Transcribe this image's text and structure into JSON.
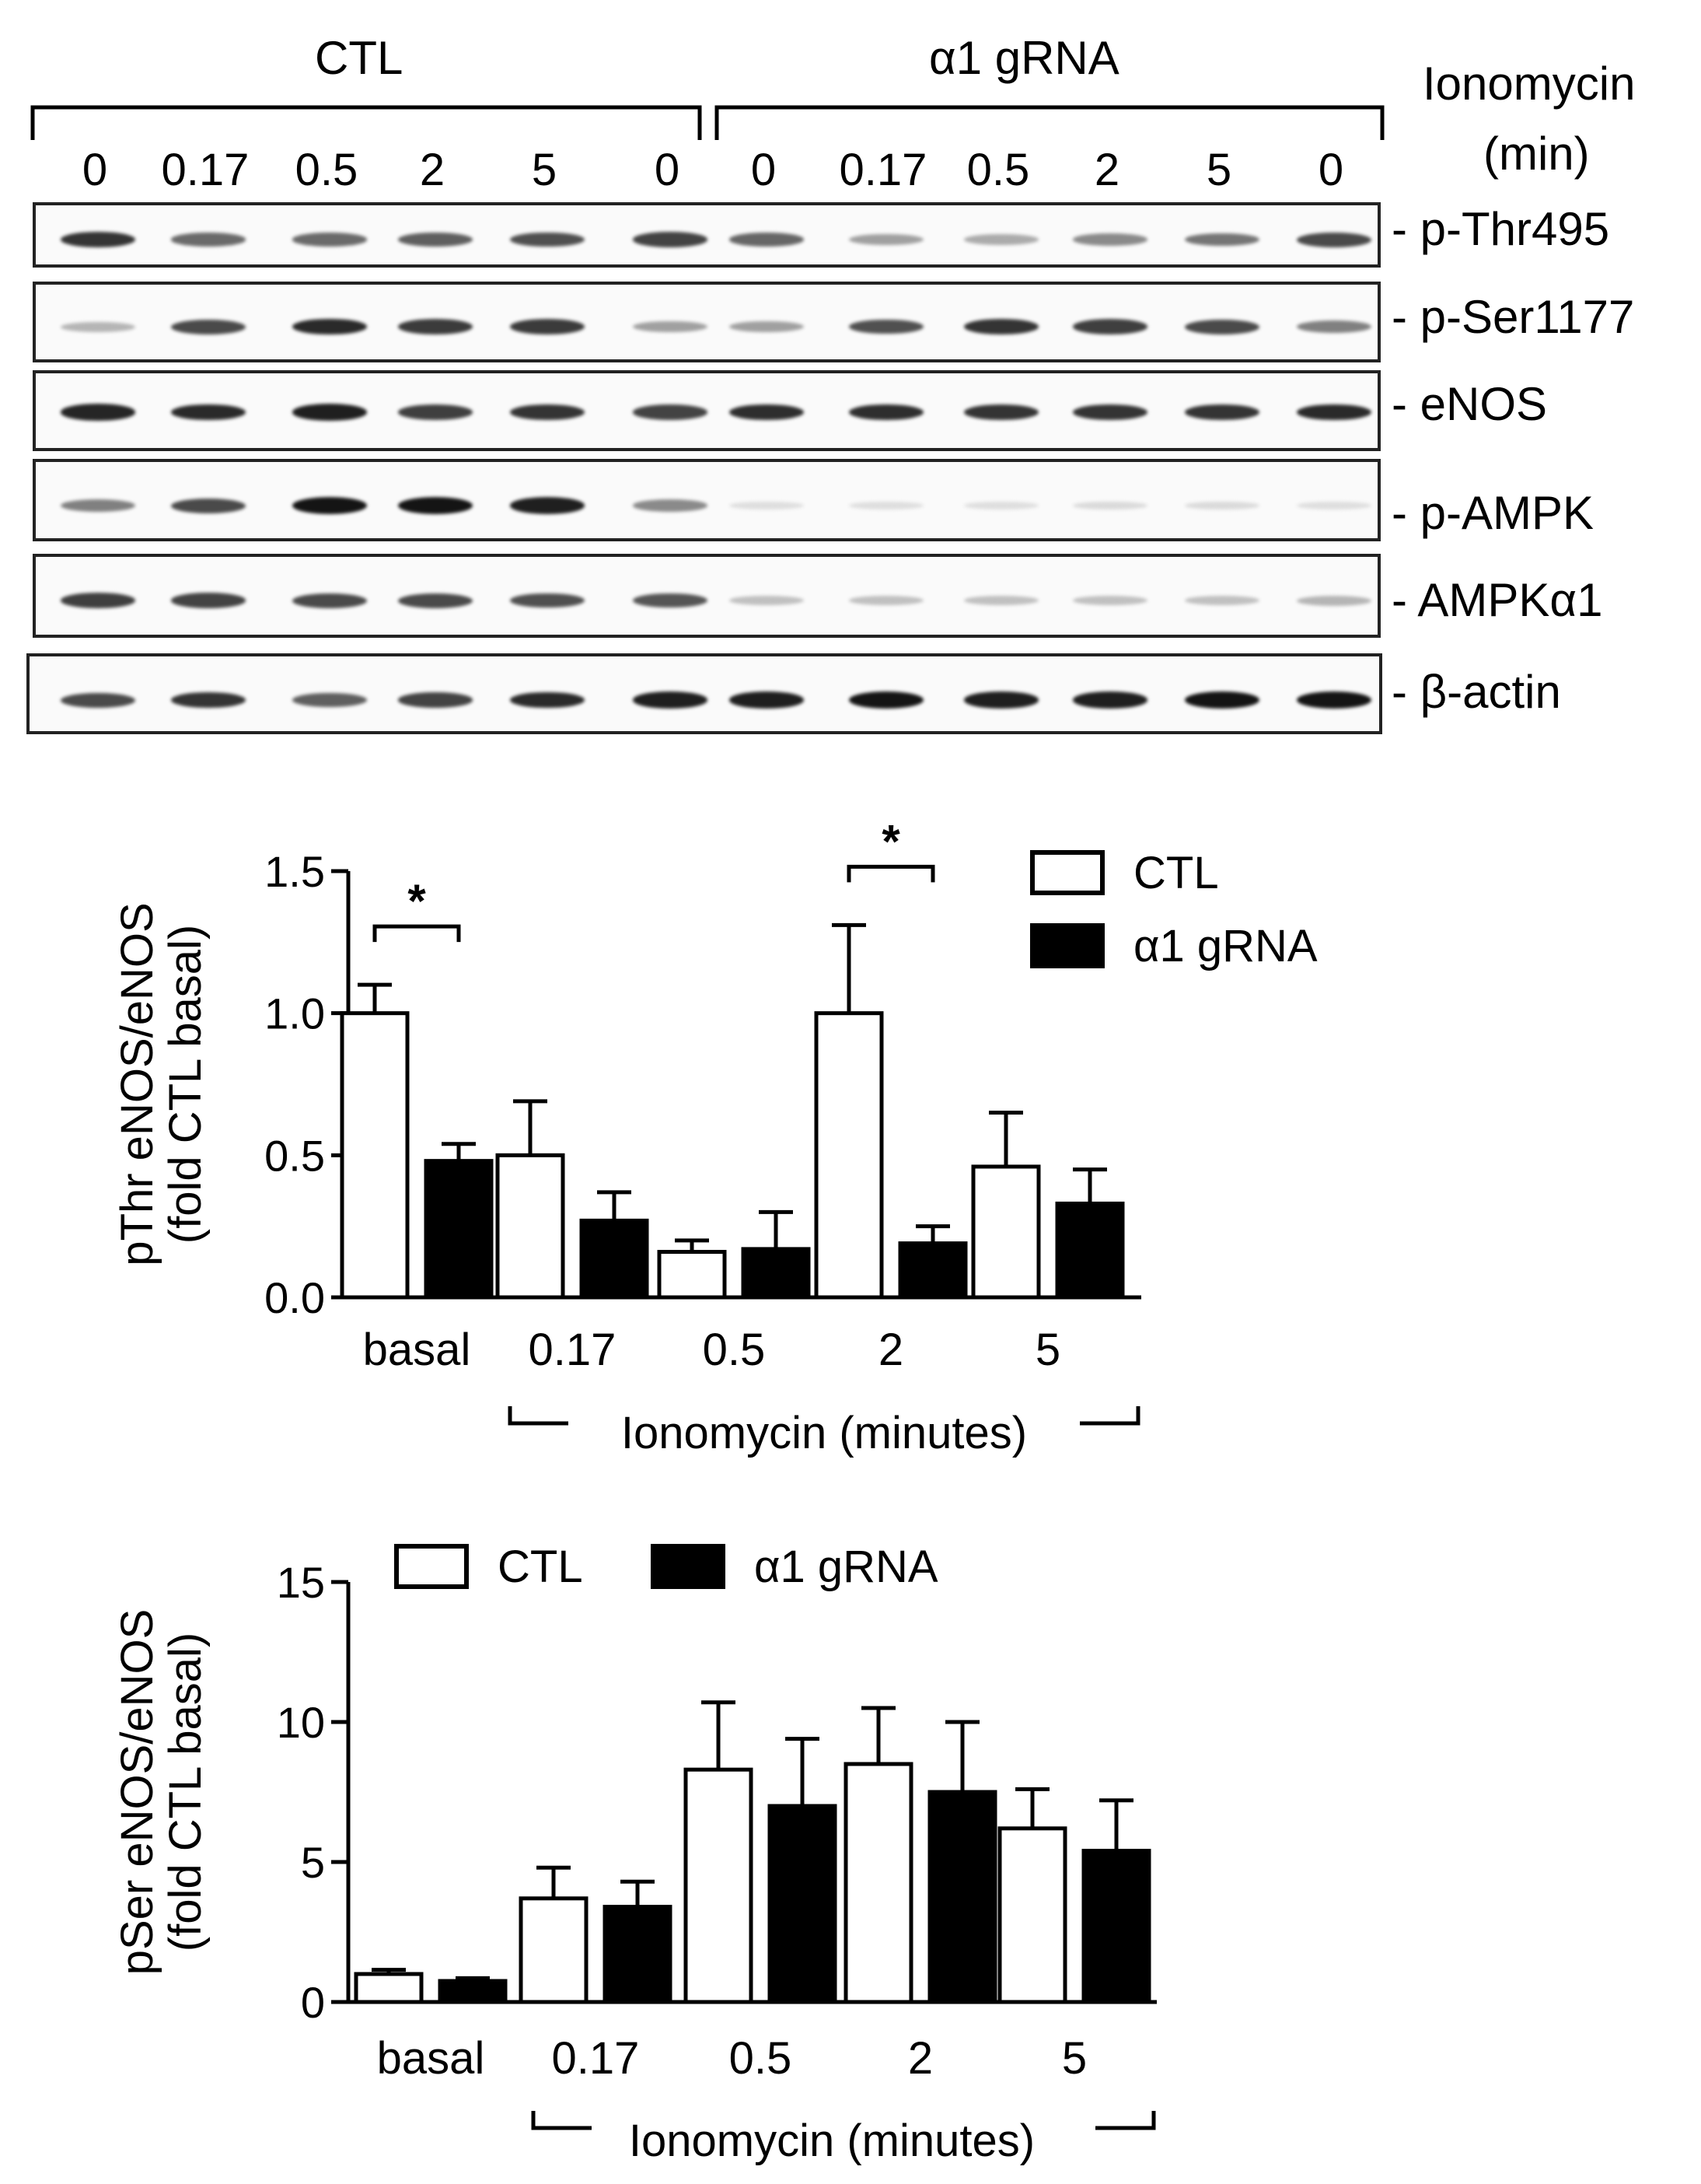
{
  "blot": {
    "groups": [
      "CTL",
      "α1 gRNA"
    ],
    "treatment_label_line1": "Ionomycin",
    "treatment_label_line2": "(min)",
    "lanes": [
      "0",
      "0.17",
      "0.5",
      "2",
      "5",
      "0",
      "0",
      "0.17",
      "0.5",
      "2",
      "5",
      "0"
    ],
    "proteins": [
      {
        "label": "- p-Thr495",
        "intensity": [
          0.85,
          0.6,
          0.6,
          0.65,
          0.72,
          0.78,
          0.62,
          0.35,
          0.3,
          0.45,
          0.55,
          0.75
        ]
      },
      {
        "label": "- p-Ser1177",
        "intensity": [
          0.25,
          0.75,
          0.9,
          0.82,
          0.82,
          0.35,
          0.35,
          0.72,
          0.85,
          0.8,
          0.75,
          0.5
        ]
      },
      {
        "label": "- eNOS",
        "intensity": [
          0.92,
          0.9,
          0.95,
          0.8,
          0.85,
          0.78,
          0.88,
          0.88,
          0.85,
          0.85,
          0.85,
          0.9
        ]
      },
      {
        "label": "- p-AMPK",
        "intensity": [
          0.5,
          0.75,
          1.0,
          1.0,
          0.95,
          0.45,
          0.06,
          0.06,
          0.06,
          0.08,
          0.08,
          0.06
        ]
      },
      {
        "label": "- AMPKα1",
        "intensity": [
          0.8,
          0.78,
          0.75,
          0.75,
          0.72,
          0.7,
          0.2,
          0.2,
          0.2,
          0.2,
          0.2,
          0.25
        ]
      },
      {
        "label": "- β-actin",
        "intensity": [
          0.75,
          0.85,
          0.65,
          0.78,
          0.9,
          0.95,
          0.95,
          1.0,
          0.95,
          0.95,
          1.0,
          1.0
        ]
      }
    ]
  },
  "chart_data": [
    {
      "type": "bar",
      "ylabel_line1": "pThr eNOS/eNOS",
      "ylabel_line2": "(fold CTL basal)",
      "ylim": [
        0,
        1.5
      ],
      "yticks": [
        "0.0",
        "0.5",
        "1.0",
        "1.5"
      ],
      "ytick_values": [
        0,
        0.5,
        1.0,
        1.5
      ],
      "categories": [
        "basal",
        "0.17",
        "0.5",
        "2",
        "5"
      ],
      "xgroup_label": "Ionomycin (minutes)",
      "series": [
        {
          "name": "CTL",
          "values": [
            1.0,
            0.5,
            0.16,
            1.0,
            0.46
          ],
          "errors": [
            0.1,
            0.19,
            0.04,
            0.31,
            0.19
          ],
          "fill": "#ffffff"
        },
        {
          "name": "α1 gRNA",
          "values": [
            0.48,
            0.27,
            0.17,
            0.19,
            0.33
          ],
          "errors": [
            0.06,
            0.1,
            0.13,
            0.06,
            0.12
          ],
          "fill": "#000000"
        }
      ],
      "significance": [
        {
          "category": "basal",
          "label": "*"
        },
        {
          "category": "2",
          "label": "*"
        }
      ],
      "legend": "top-right"
    },
    {
      "type": "bar",
      "ylabel_line1": "pSer eNOS/eNOS",
      "ylabel_line2": "(fold CTL basal)",
      "ylim": [
        0,
        15
      ],
      "yticks": [
        "0",
        "5",
        "10",
        "15"
      ],
      "ytick_values": [
        0,
        5,
        10,
        15
      ],
      "categories": [
        "basal",
        "0.17",
        "0.5",
        "2",
        "5"
      ],
      "xgroup_label": "Ionomycin (minutes)",
      "series": [
        {
          "name": "CTL",
          "values": [
            1.0,
            3.7,
            8.3,
            8.5,
            6.2
          ],
          "errors": [
            0.15,
            1.1,
            2.4,
            2.0,
            1.4
          ],
          "fill": "#ffffff"
        },
        {
          "name": "α1 gRNA",
          "values": [
            0.75,
            3.4,
            7.0,
            7.5,
            5.4
          ],
          "errors": [
            0.1,
            0.9,
            2.4,
            2.5,
            1.8
          ],
          "fill": "#000000"
        }
      ],
      "significance": [],
      "legend": "top"
    }
  ]
}
